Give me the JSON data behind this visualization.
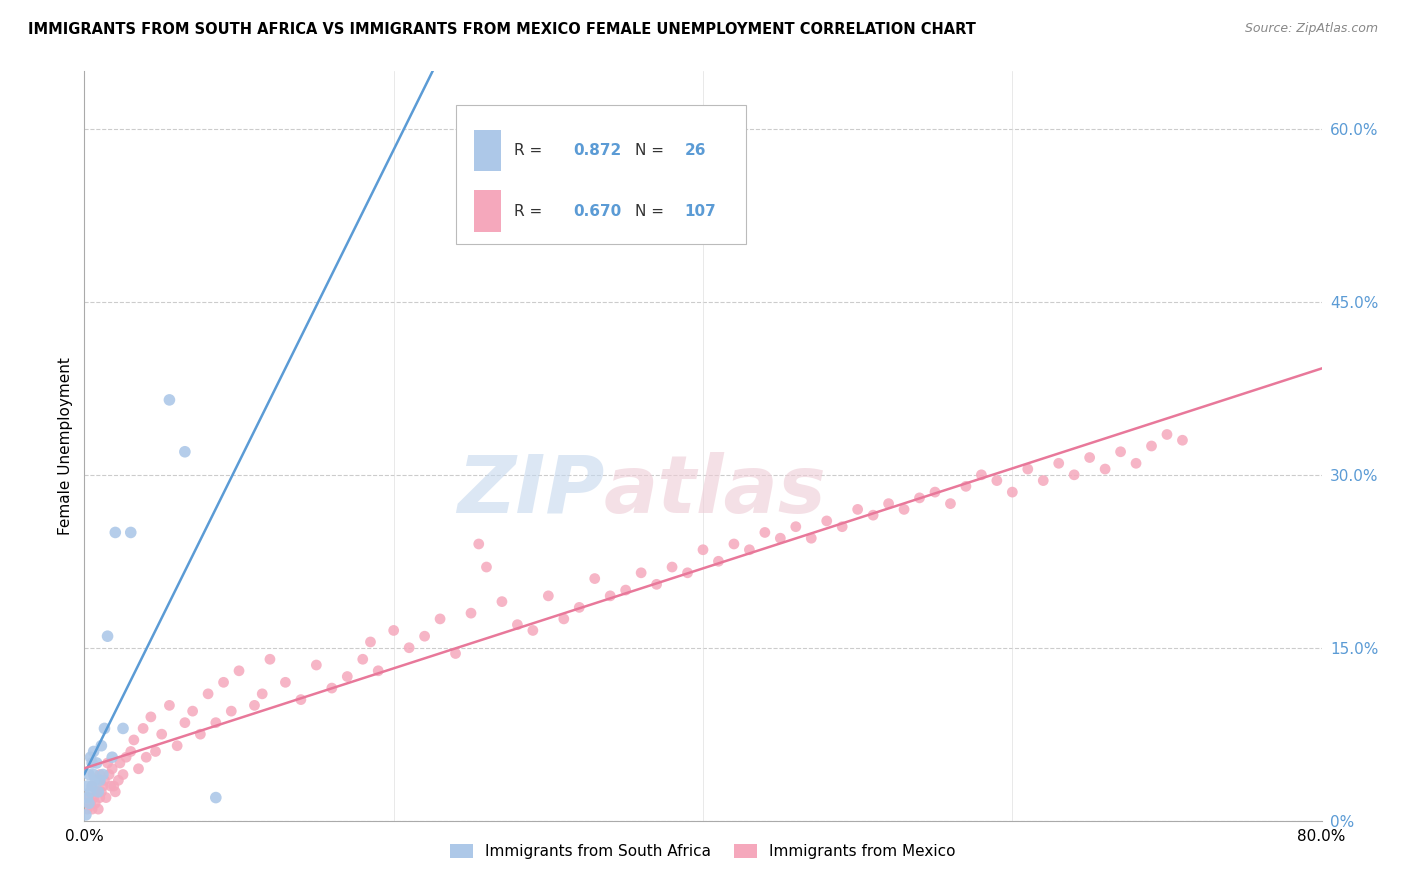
{
  "title": "IMMIGRANTS FROM SOUTH AFRICA VS IMMIGRANTS FROM MEXICO FEMALE UNEMPLOYMENT CORRELATION CHART",
  "source": "Source: ZipAtlas.com",
  "ylabel": "Female Unemployment",
  "legend_label1": "Immigrants from South Africa",
  "legend_label2": "Immigrants from Mexico",
  "r1": 0.872,
  "n1": 26,
  "r2": 0.67,
  "n2": 107,
  "color_sa": "#adc8e8",
  "color_mx": "#f5a8bc",
  "color_line_sa": "#5b9bd5",
  "color_line_mx": "#e8789a",
  "right_ytick_vals": [
    0.0,
    0.15,
    0.3,
    0.45,
    0.6
  ],
  "right_ytick_labels": [
    "0%",
    "15.0%",
    "30.0%",
    "45.0%",
    "60.0%"
  ],
  "xlim": [
    0.0,
    0.8
  ],
  "ylim": [
    0.0,
    0.65
  ],
  "sa_x": [
    0.001,
    0.002,
    0.002,
    0.003,
    0.003,
    0.004,
    0.004,
    0.005,
    0.005,
    0.006,
    0.006,
    0.007,
    0.008,
    0.009,
    0.01,
    0.011,
    0.012,
    0.013,
    0.015,
    0.018,
    0.02,
    0.025,
    0.03,
    0.055,
    0.065,
    0.085
  ],
  "sa_y": [
    0.005,
    0.02,
    0.03,
    0.015,
    0.04,
    0.025,
    0.055,
    0.03,
    0.05,
    0.04,
    0.06,
    0.035,
    0.05,
    0.025,
    0.035,
    0.065,
    0.04,
    0.08,
    0.16,
    0.055,
    0.25,
    0.08,
    0.25,
    0.365,
    0.32,
    0.02
  ],
  "mx_x": [
    0.002,
    0.003,
    0.004,
    0.005,
    0.005,
    0.006,
    0.007,
    0.008,
    0.009,
    0.01,
    0.01,
    0.011,
    0.012,
    0.013,
    0.014,
    0.015,
    0.016,
    0.017,
    0.018,
    0.019,
    0.02,
    0.022,
    0.023,
    0.025,
    0.027,
    0.03,
    0.032,
    0.035,
    0.038,
    0.04,
    0.043,
    0.046,
    0.05,
    0.055,
    0.06,
    0.065,
    0.07,
    0.075,
    0.08,
    0.085,
    0.09,
    0.095,
    0.1,
    0.11,
    0.115,
    0.12,
    0.13,
    0.14,
    0.15,
    0.16,
    0.17,
    0.18,
    0.185,
    0.19,
    0.2,
    0.21,
    0.22,
    0.23,
    0.24,
    0.25,
    0.255,
    0.26,
    0.27,
    0.28,
    0.29,
    0.3,
    0.31,
    0.32,
    0.33,
    0.34,
    0.35,
    0.36,
    0.37,
    0.38,
    0.39,
    0.4,
    0.41,
    0.42,
    0.43,
    0.44,
    0.45,
    0.46,
    0.47,
    0.48,
    0.49,
    0.5,
    0.51,
    0.52,
    0.53,
    0.54,
    0.55,
    0.56,
    0.57,
    0.58,
    0.59,
    0.6,
    0.61,
    0.62,
    0.63,
    0.64,
    0.65,
    0.66,
    0.67,
    0.68,
    0.69,
    0.7,
    0.71
  ],
  "mx_y": [
    0.01,
    0.02,
    0.015,
    0.01,
    0.03,
    0.02,
    0.015,
    0.025,
    0.01,
    0.02,
    0.04,
    0.025,
    0.03,
    0.035,
    0.02,
    0.05,
    0.04,
    0.03,
    0.045,
    0.03,
    0.025,
    0.035,
    0.05,
    0.04,
    0.055,
    0.06,
    0.07,
    0.045,
    0.08,
    0.055,
    0.09,
    0.06,
    0.075,
    0.1,
    0.065,
    0.085,
    0.095,
    0.075,
    0.11,
    0.085,
    0.12,
    0.095,
    0.13,
    0.1,
    0.11,
    0.14,
    0.12,
    0.105,
    0.135,
    0.115,
    0.125,
    0.14,
    0.155,
    0.13,
    0.165,
    0.15,
    0.16,
    0.175,
    0.145,
    0.18,
    0.24,
    0.22,
    0.19,
    0.17,
    0.165,
    0.195,
    0.175,
    0.185,
    0.21,
    0.195,
    0.2,
    0.215,
    0.205,
    0.22,
    0.215,
    0.235,
    0.225,
    0.24,
    0.235,
    0.25,
    0.245,
    0.255,
    0.245,
    0.26,
    0.255,
    0.27,
    0.265,
    0.275,
    0.27,
    0.28,
    0.285,
    0.275,
    0.29,
    0.3,
    0.295,
    0.285,
    0.305,
    0.295,
    0.31,
    0.3,
    0.315,
    0.305,
    0.32,
    0.31,
    0.325,
    0.335,
    0.33
  ]
}
